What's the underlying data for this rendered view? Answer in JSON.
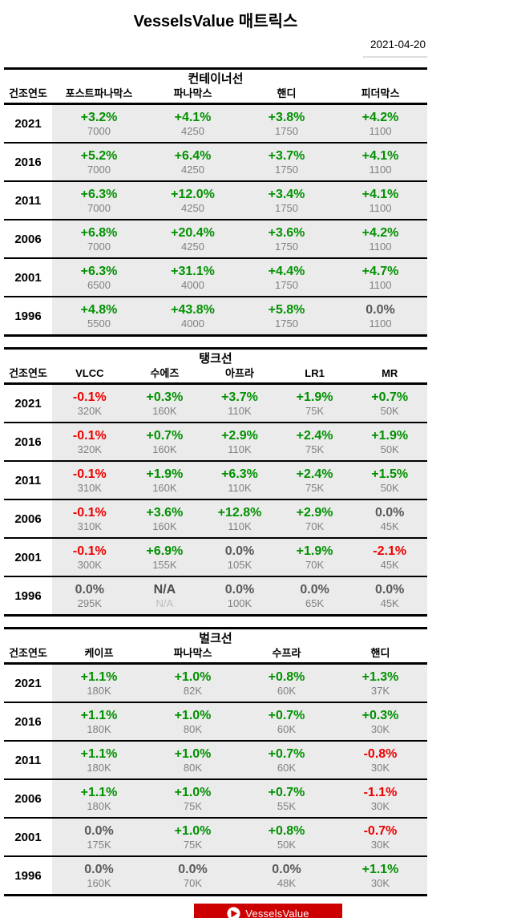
{
  "title": "VesselsValue 매트릭스",
  "date": "2021-04-20",
  "colors": {
    "positive": "#009100",
    "negative": "#ee0000",
    "neutral": "#595959",
    "sub_value": "#808080",
    "cell_background": "#ebebeb",
    "banner_red": "#cc0000"
  },
  "footer": {
    "logo_text": "VesselsValue",
    "logo_icon": "vesselsvalue-circle-sail-icon"
  },
  "tables": [
    {
      "section_title": "컨테이너선",
      "year_header": "건조연도",
      "columns": [
        "포스트파나막스",
        "파나막스",
        "핸디",
        "피더막스"
      ],
      "rows": [
        {
          "year": "2021",
          "cells": [
            {
              "pct": "+3.2%",
              "value": "7000"
            },
            {
              "pct": "+4.1%",
              "value": "4250"
            },
            {
              "pct": "+3.8%",
              "value": "1750"
            },
            {
              "pct": "+4.2%",
              "value": "1100"
            }
          ]
        },
        {
          "year": "2016",
          "cells": [
            {
              "pct": "+5.2%",
              "value": "7000"
            },
            {
              "pct": "+6.4%",
              "value": "4250"
            },
            {
              "pct": "+3.7%",
              "value": "1750"
            },
            {
              "pct": "+4.1%",
              "value": "1100"
            }
          ]
        },
        {
          "year": "2011",
          "cells": [
            {
              "pct": "+6.3%",
              "value": "7000"
            },
            {
              "pct": "+12.0%",
              "value": "4250"
            },
            {
              "pct": "+3.4%",
              "value": "1750"
            },
            {
              "pct": "+4.1%",
              "value": "1100"
            }
          ]
        },
        {
          "year": "2006",
          "cells": [
            {
              "pct": "+6.8%",
              "value": "7000"
            },
            {
              "pct": "+20.4%",
              "value": "4250"
            },
            {
              "pct": "+3.6%",
              "value": "1750"
            },
            {
              "pct": "+4.2%",
              "value": "1100"
            }
          ]
        },
        {
          "year": "2001",
          "cells": [
            {
              "pct": "+6.3%",
              "value": "6500"
            },
            {
              "pct": "+31.1%",
              "value": "4000"
            },
            {
              "pct": "+4.4%",
              "value": "1750"
            },
            {
              "pct": "+4.7%",
              "value": "1100"
            }
          ]
        },
        {
          "year": "1996",
          "cells": [
            {
              "pct": "+4.8%",
              "value": "5500"
            },
            {
              "pct": "+43.8%",
              "value": "4000"
            },
            {
              "pct": "+5.8%",
              "value": "1750"
            },
            {
              "pct": "0.0%",
              "value": "1100"
            }
          ]
        }
      ]
    },
    {
      "section_title": "탱크선",
      "year_header": "건조연도",
      "columns": [
        "VLCC",
        "수에즈",
        "아프라",
        "LR1",
        "MR"
      ],
      "rows": [
        {
          "year": "2021",
          "cells": [
            {
              "pct": "-0.1%",
              "value": "320K"
            },
            {
              "pct": "+0.3%",
              "value": "160K"
            },
            {
              "pct": "+3.7%",
              "value": "110K"
            },
            {
              "pct": "+1.9%",
              "value": "75K"
            },
            {
              "pct": "+0.7%",
              "value": "50K"
            }
          ]
        },
        {
          "year": "2016",
          "cells": [
            {
              "pct": "-0.1%",
              "value": "320K"
            },
            {
              "pct": "+0.7%",
              "value": "160K"
            },
            {
              "pct": "+2.9%",
              "value": "110K"
            },
            {
              "pct": "+2.4%",
              "value": "75K"
            },
            {
              "pct": "+1.9%",
              "value": "50K"
            }
          ]
        },
        {
          "year": "2011",
          "cells": [
            {
              "pct": "-0.1%",
              "value": "310K"
            },
            {
              "pct": "+1.9%",
              "value": "160K"
            },
            {
              "pct": "+6.3%",
              "value": "110K"
            },
            {
              "pct": "+2.4%",
              "value": "75K"
            },
            {
              "pct": "+1.5%",
              "value": "50K"
            }
          ]
        },
        {
          "year": "2006",
          "cells": [
            {
              "pct": "-0.1%",
              "value": "310K"
            },
            {
              "pct": "+3.6%",
              "value": "160K"
            },
            {
              "pct": "+12.8%",
              "value": "110K"
            },
            {
              "pct": "+2.9%",
              "value": "70K"
            },
            {
              "pct": "0.0%",
              "value": "45K"
            }
          ]
        },
        {
          "year": "2001",
          "cells": [
            {
              "pct": "-0.1%",
              "value": "300K"
            },
            {
              "pct": "+6.9%",
              "value": "155K"
            },
            {
              "pct": "0.0%",
              "value": "105K"
            },
            {
              "pct": "+1.9%",
              "value": "70K"
            },
            {
              "pct": "-2.1%",
              "value": "45K"
            }
          ]
        },
        {
          "year": "1996",
          "cells": [
            {
              "pct": "0.0%",
              "value": "295K"
            },
            {
              "pct": "N/A",
              "value": "N/A"
            },
            {
              "pct": "0.0%",
              "value": "100K"
            },
            {
              "pct": "0.0%",
              "value": "65K"
            },
            {
              "pct": "0.0%",
              "value": "45K"
            }
          ]
        }
      ]
    },
    {
      "section_title": "벌크선",
      "year_header": "건조연도",
      "columns": [
        "케이프",
        "파나막스",
        "수프라",
        "핸디"
      ],
      "rows": [
        {
          "year": "2021",
          "cells": [
            {
              "pct": "+1.1%",
              "value": "180K"
            },
            {
              "pct": "+1.0%",
              "value": "82K"
            },
            {
              "pct": "+0.8%",
              "value": "60K"
            },
            {
              "pct": "+1.3%",
              "value": "37K"
            }
          ]
        },
        {
          "year": "2016",
          "cells": [
            {
              "pct": "+1.1%",
              "value": "180K"
            },
            {
              "pct": "+1.0%",
              "value": "80K"
            },
            {
              "pct": "+0.7%",
              "value": "60K"
            },
            {
              "pct": "+0.3%",
              "value": "30K"
            }
          ]
        },
        {
          "year": "2011",
          "cells": [
            {
              "pct": "+1.1%",
              "value": "180K"
            },
            {
              "pct": "+1.0%",
              "value": "80K"
            },
            {
              "pct": "+0.7%",
              "value": "60K"
            },
            {
              "pct": "-0.8%",
              "value": "30K"
            }
          ]
        },
        {
          "year": "2006",
          "cells": [
            {
              "pct": "+1.1%",
              "value": "180K"
            },
            {
              "pct": "+1.0%",
              "value": "75K"
            },
            {
              "pct": "+0.7%",
              "value": "55K"
            },
            {
              "pct": "-1.1%",
              "value": "30K"
            }
          ]
        },
        {
          "year": "2001",
          "cells": [
            {
              "pct": "0.0%",
              "value": "175K"
            },
            {
              "pct": "+1.0%",
              "value": "75K"
            },
            {
              "pct": "+0.8%",
              "value": "50K"
            },
            {
              "pct": "-0.7%",
              "value": "30K"
            }
          ]
        },
        {
          "year": "1996",
          "cells": [
            {
              "pct": "0.0%",
              "value": "160K"
            },
            {
              "pct": "0.0%",
              "value": "70K"
            },
            {
              "pct": "0.0%",
              "value": "48K"
            },
            {
              "pct": "+1.1%",
              "value": "30K"
            }
          ]
        }
      ]
    }
  ]
}
